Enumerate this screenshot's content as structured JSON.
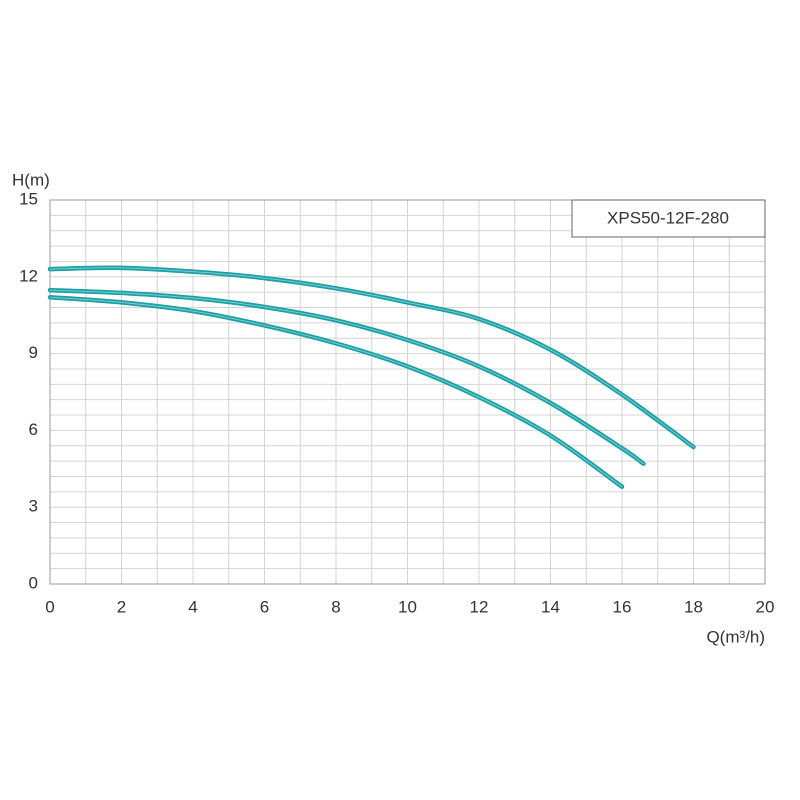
{
  "chart_data": {
    "type": "line",
    "model": "XPS50-12F-280",
    "y_label": "H(m)",
    "x_label": "Q(m³/h)",
    "xlim": [
      0,
      20
    ],
    "ylim": [
      0,
      15
    ],
    "xticks": [
      0,
      2,
      4,
      6,
      8,
      10,
      12,
      14,
      16,
      18,
      20
    ],
    "yticks": [
      0,
      3,
      6,
      9,
      12,
      15
    ],
    "grid": true,
    "series": [
      {
        "color": "#1aa0a6",
        "x": [
          0,
          2,
          4,
          6,
          8,
          10,
          12,
          14,
          16,
          18
        ],
        "values": [
          12.3,
          12.35,
          12.2,
          11.95,
          11.55,
          11.0,
          10.35,
          9.15,
          7.4,
          5.35
        ]
      },
      {
        "color": "#1aa0a6",
        "x": [
          0,
          2,
          4,
          6,
          8,
          10,
          12,
          14,
          16,
          16.6
        ],
        "values": [
          11.48,
          11.37,
          11.17,
          10.82,
          10.3,
          9.53,
          8.5,
          7.07,
          5.3,
          4.7
        ]
      },
      {
        "color": "#1aa0a6",
        "x": [
          0,
          2,
          4,
          6,
          8,
          10,
          12,
          14,
          16
        ],
        "values": [
          11.2,
          11.0,
          10.66,
          10.1,
          9.4,
          8.5,
          7.3,
          5.8,
          3.8
        ]
      }
    ]
  }
}
